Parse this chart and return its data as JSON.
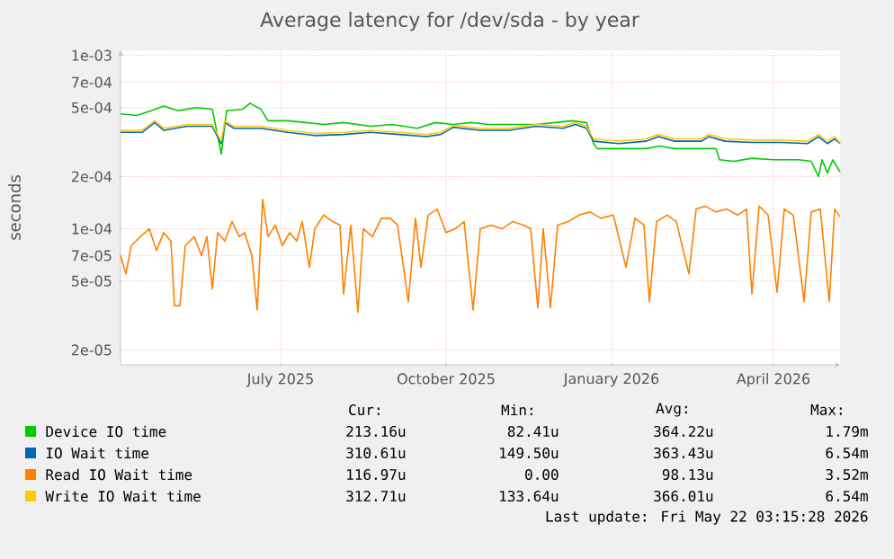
{
  "chart_data": {
    "type": "line",
    "title": "Average latency for /dev/sda - by year",
    "ylabel": "seconds",
    "log": true,
    "grid": true,
    "legend": "bottom",
    "xlim": [
      "2025-04-03",
      "2026-05-08"
    ],
    "ylim": [
      1.64e-05,
      0.00107
    ],
    "xticks": [
      {
        "value": "2025-07-01",
        "label": "July 2025"
      },
      {
        "value": "2025-10-01",
        "label": "October 2025"
      },
      {
        "value": "2026-01-01",
        "label": "January 2026"
      },
      {
        "value": "2026-04-01",
        "label": "April 2026"
      }
    ],
    "yticks": [
      {
        "value": 0.001,
        "label": "1e-03"
      },
      {
        "value": 0.0007,
        "label": "7e-04"
      },
      {
        "value": 0.0005,
        "label": "5e-04"
      },
      {
        "value": 0.0002,
        "label": "2e-04"
      },
      {
        "value": 0.0001,
        "label": "1e-04"
      },
      {
        "value": 7e-05,
        "label": "7e-05"
      },
      {
        "value": 5e-05,
        "label": "5e-05"
      },
      {
        "value": 2e-05,
        "label": "2e-05"
      }
    ],
    "series": [
      {
        "name": "Device IO time",
        "color": "#00cc00",
        "x": [
          "2025-04-03",
          "2025-04-12",
          "2025-04-20",
          "2025-04-27",
          "2025-05-05",
          "2025-05-15",
          "2025-05-24",
          "2025-05-29",
          "2025-06-01",
          "2025-06-10",
          "2025-06-14",
          "2025-06-20",
          "2025-06-24",
          "2025-07-05",
          "2025-07-15",
          "2025-07-25",
          "2025-08-05",
          "2025-08-20",
          "2025-09-01",
          "2025-09-15",
          "2025-09-25",
          "2025-10-05",
          "2025-10-15",
          "2025-10-25",
          "2025-11-05",
          "2025-11-20",
          "2025-12-01",
          "2025-12-10",
          "2025-12-18",
          "2025-12-22",
          "2025-12-24",
          "2026-01-05",
          "2026-01-20",
          "2026-01-28",
          "2026-02-05",
          "2026-02-20",
          "2026-02-28",
          "2026-03-02",
          "2026-03-10",
          "2026-03-20",
          "2026-04-01",
          "2026-04-15",
          "2026-04-22",
          "2026-04-26",
          "2026-04-28",
          "2026-05-01",
          "2026-05-04",
          "2026-05-08"
        ],
        "values": [
          0.00046,
          0.00045,
          0.00048,
          0.00051,
          0.00048,
          0.0005,
          0.00049,
          0.00027,
          0.00048,
          0.00049,
          0.00053,
          0.00049,
          0.00042,
          0.00042,
          0.00041,
          0.0004,
          0.00041,
          0.00039,
          0.0004,
          0.00038,
          0.00041,
          0.0004,
          0.00041,
          0.0004,
          0.0004,
          0.0004,
          0.00041,
          0.00042,
          0.00041,
          0.00031,
          0.00029,
          0.00029,
          0.00029,
          0.0003,
          0.00029,
          0.00029,
          0.00029,
          0.00025,
          0.000245,
          0.000255,
          0.00025,
          0.00025,
          0.000245,
          0.0002,
          0.00025,
          0.00021,
          0.00025,
          0.000213
        ]
      },
      {
        "name": "IO Wait time",
        "color": "#0066b3",
        "x": [
          "2025-04-03",
          "2025-04-15",
          "2025-04-22",
          "2025-04-27",
          "2025-05-10",
          "2025-05-24",
          "2025-05-29",
          "2025-05-31",
          "2025-06-05",
          "2025-06-20",
          "2025-07-05",
          "2025-07-20",
          "2025-08-05",
          "2025-08-20",
          "2025-09-05",
          "2025-09-20",
          "2025-09-28",
          "2025-10-05",
          "2025-10-20",
          "2025-11-05",
          "2025-11-20",
          "2025-12-05",
          "2025-12-12",
          "2025-12-18",
          "2025-12-22",
          "2026-01-05",
          "2026-01-20",
          "2026-01-27",
          "2026-02-05",
          "2026-02-20",
          "2026-02-24",
          "2026-03-05",
          "2026-03-20",
          "2026-04-05",
          "2026-04-20",
          "2026-04-26",
          "2026-05-01",
          "2026-05-05",
          "2026-05-08"
        ],
        "values": [
          0.00036,
          0.00036,
          0.00041,
          0.00037,
          0.00039,
          0.00039,
          0.00031,
          0.00041,
          0.00038,
          0.00038,
          0.00036,
          0.000345,
          0.00035,
          0.00036,
          0.00035,
          0.00034,
          0.00035,
          0.000385,
          0.00037,
          0.00037,
          0.00039,
          0.00038,
          0.0004,
          0.00038,
          0.00032,
          0.00031,
          0.00032,
          0.00034,
          0.00032,
          0.00032,
          0.00034,
          0.00032,
          0.000315,
          0.000315,
          0.00031,
          0.00034,
          0.00031,
          0.00033,
          0.000311
        ]
      },
      {
        "name": "Read IO Wait time",
        "color": "#ff8000",
        "x": [
          "2025-04-03",
          "2025-04-06",
          "2025-04-09",
          "2025-04-14",
          "2025-04-19",
          "2025-04-23",
          "2025-04-27",
          "2025-05-01",
          "2025-05-03",
          "2025-05-06",
          "2025-05-09",
          "2025-05-14",
          "2025-05-18",
          "2025-05-21",
          "2025-05-24",
          "2025-05-27",
          "2025-05-31",
          "2025-06-04",
          "2025-06-08",
          "2025-06-11",
          "2025-06-15",
          "2025-06-18",
          "2025-06-21",
          "2025-06-24",
          "2025-06-28",
          "2025-07-02",
          "2025-07-06",
          "2025-07-10",
          "2025-07-13",
          "2025-07-17",
          "2025-07-20",
          "2025-07-25",
          "2025-07-30",
          "2025-08-03",
          "2025-08-05",
          "2025-08-09",
          "2025-08-13",
          "2025-08-16",
          "2025-08-21",
          "2025-08-26",
          "2025-08-31",
          "2025-09-04",
          "2025-09-10",
          "2025-09-14",
          "2025-09-17",
          "2025-09-21",
          "2025-09-26",
          "2025-10-01",
          "2025-10-06",
          "2025-10-11",
          "2025-10-16",
          "2025-10-20",
          "2025-10-26",
          "2025-11-01",
          "2025-11-07",
          "2025-11-13",
          "2025-11-17",
          "2025-11-21",
          "2025-11-24",
          "2025-11-28",
          "2025-12-02",
          "2025-12-08",
          "2025-12-14",
          "2025-12-20",
          "2025-12-26",
          "2026-01-02",
          "2026-01-09",
          "2026-01-14",
          "2026-01-19",
          "2026-01-22",
          "2026-01-26",
          "2026-02-01",
          "2026-02-06",
          "2026-02-13",
          "2026-02-17",
          "2026-02-22",
          "2026-02-28",
          "2026-03-06",
          "2026-03-12",
          "2026-03-17",
          "2026-03-20",
          "2026-03-24",
          "2026-03-29",
          "2026-04-03",
          "2026-04-07",
          "2026-04-12",
          "2026-04-18",
          "2026-04-22",
          "2026-04-27",
          "2026-05-02",
          "2026-05-05",
          "2026-05-08"
        ],
        "values": [
          7e-05,
          5.5e-05,
          8e-05,
          9e-05,
          0.0001,
          7.5e-05,
          9.5e-05,
          8.5e-05,
          3.6e-05,
          3.6e-05,
          8e-05,
          9e-05,
          7e-05,
          9e-05,
          4.5e-05,
          9.5e-05,
          8.5e-05,
          0.00011,
          9e-05,
          9.5e-05,
          7e-05,
          3.4e-05,
          0.000148,
          9e-05,
          0.000105,
          8e-05,
          9.5e-05,
          8.5e-05,
          0.00011,
          6e-05,
          0.0001,
          0.00012,
          0.00011,
          0.000105,
          4.2e-05,
          0.000105,
          3.3e-05,
          0.0001,
          9e-05,
          0.000115,
          0.000115,
          0.000105,
          3.8e-05,
          0.000115,
          6e-05,
          0.00012,
          0.00013,
          9.5e-05,
          0.0001,
          0.00011,
          3.4e-05,
          0.0001,
          0.000105,
          0.0001,
          0.00011,
          0.000105,
          0.0001,
          3.5e-05,
          0.0001,
          3.5e-05,
          0.000105,
          0.00011,
          0.00012,
          0.000125,
          0.000115,
          0.00012,
          6e-05,
          0.000115,
          0.000105,
          3.8e-05,
          0.00011,
          0.00012,
          0.00011,
          5.5e-05,
          0.00013,
          0.000135,
          0.000125,
          0.00013,
          0.00012,
          0.00013,
          4.2e-05,
          0.000135,
          0.00012,
          4.3e-05,
          0.00013,
          0.00012,
          3.8e-05,
          0.000125,
          0.00013,
          3.8e-05,
          0.00013,
          0.000117
        ]
      },
      {
        "name": "Write IO Wait time",
        "color": "#ffcc00",
        "x": [
          "2025-04-03",
          "2025-04-15",
          "2025-04-22",
          "2025-04-27",
          "2025-05-10",
          "2025-05-24",
          "2025-05-29",
          "2025-05-31",
          "2025-06-05",
          "2025-06-20",
          "2025-07-05",
          "2025-07-20",
          "2025-08-05",
          "2025-08-20",
          "2025-09-05",
          "2025-09-20",
          "2025-09-28",
          "2025-10-05",
          "2025-10-20",
          "2025-11-05",
          "2025-11-20",
          "2025-12-05",
          "2025-12-12",
          "2025-12-18",
          "2025-12-22",
          "2026-01-05",
          "2026-01-20",
          "2026-01-27",
          "2026-02-05",
          "2026-02-20",
          "2026-02-24",
          "2026-03-05",
          "2026-03-20",
          "2026-04-05",
          "2026-04-20",
          "2026-04-26",
          "2026-05-01",
          "2026-05-05",
          "2026-05-08"
        ],
        "values": [
          0.00037,
          0.00037,
          0.00042,
          0.00038,
          0.0004,
          0.0004,
          0.00032,
          0.00042,
          0.00039,
          0.00039,
          0.00037,
          0.000355,
          0.00036,
          0.00037,
          0.00036,
          0.00035,
          0.00036,
          0.000395,
          0.00038,
          0.00038,
          0.0004,
          0.00039,
          0.00041,
          0.00039,
          0.00033,
          0.00032,
          0.00033,
          0.00035,
          0.00033,
          0.00033,
          0.00035,
          0.00033,
          0.000325,
          0.000325,
          0.00032,
          0.00035,
          0.00032,
          0.00034,
          0.000313
        ]
      }
    ],
    "annotations": [
      "Cur:",
      "Min:",
      "Avg:",
      "Max:",
      "213.16u",
      "82.41u",
      "364.22u",
      "1.79m",
      "310.61u",
      "149.50u",
      "363.43u",
      "6.54m",
      "116.97u",
      "0.00",
      "98.13u",
      "3.52m",
      "312.71u",
      "133.64u",
      "366.01u",
      "6.54m",
      "Last update: Fri May 22 03:15:28 2026"
    ]
  }
}
